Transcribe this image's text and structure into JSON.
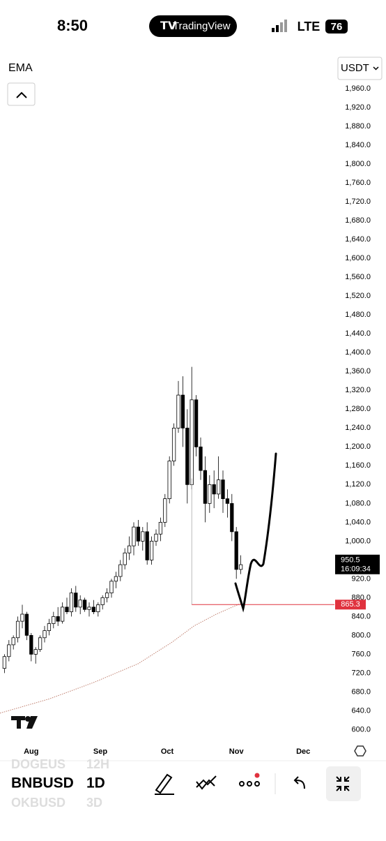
{
  "ui": {
    "time": "8:50",
    "app": "TradingView",
    "network": "LTE",
    "battery": "76",
    "indicator": "EMA",
    "currency": "USDT",
    "symbols": [
      {
        "name": "DOGEUS",
        "interval": "12H"
      },
      {
        "name": "BNBUSD",
        "interval": "1D"
      },
      {
        "name": "OKBUSD",
        "interval": "3D"
      }
    ]
  },
  "chart_data": {
    "type": "candlestick",
    "x": [
      0,
      2,
      4,
      6,
      8,
      10,
      12,
      14,
      16,
      18,
      20,
      22,
      24,
      26,
      28,
      30,
      32,
      34,
      36,
      38,
      40,
      42,
      44,
      46,
      48,
      50,
      52,
      54,
      56,
      58,
      60,
      62,
      64,
      66,
      68,
      70,
      72,
      74,
      76,
      78,
      80,
      82,
      84,
      86,
      88,
      90,
      92,
      94,
      96,
      98,
      100,
      102,
      104,
      106
    ],
    "open": [
      730,
      755,
      780,
      795,
      830,
      845,
      800,
      760,
      770,
      795,
      810,
      825,
      840,
      830,
      860,
      850,
      890,
      860,
      875,
      855,
      860,
      850,
      865,
      880,
      890,
      915,
      925,
      950,
      975,
      990,
      1030,
      1000,
      1020,
      960,
      1000,
      1015,
      1040,
      1090,
      1170,
      1240,
      1310,
      1240,
      1120,
      1300,
      1200,
      1150,
      1080,
      1120,
      1100,
      1130,
      1090,
      1080,
      1020,
      940
    ],
    "high": [
      760,
      790,
      800,
      840,
      865,
      850,
      805,
      775,
      800,
      820,
      835,
      850,
      860,
      870,
      880,
      900,
      905,
      885,
      880,
      870,
      875,
      870,
      885,
      900,
      920,
      935,
      960,
      985,
      1010,
      1040,
      1045,
      1030,
      1040,
      1010,
      1025,
      1050,
      1100,
      1180,
      1250,
      1340,
      1350,
      1280,
      1370,
      1310,
      1220,
      1180,
      1140,
      1150,
      1180,
      1150,
      1110,
      1100,
      1030,
      970
    ],
    "low": [
      720,
      745,
      770,
      785,
      815,
      790,
      745,
      740,
      765,
      785,
      800,
      815,
      820,
      825,
      845,
      840,
      850,
      845,
      850,
      840,
      845,
      840,
      855,
      870,
      880,
      900,
      915,
      940,
      960,
      970,
      990,
      980,
      950,
      950,
      990,
      1000,
      1030,
      1080,
      1160,
      1230,
      1200,
      1080,
      1110,
      1180,
      1130,
      1040,
      1060,
      1070,
      1090,
      1060,
      1050,
      1000,
      920,
      930
    ],
    "close": [
      755,
      780,
      795,
      830,
      845,
      800,
      760,
      770,
      795,
      810,
      825,
      840,
      830,
      860,
      850,
      890,
      860,
      875,
      855,
      860,
      850,
      865,
      880,
      890,
      915,
      925,
      950,
      975,
      990,
      1030,
      1000,
      1020,
      960,
      1000,
      1015,
      1040,
      1090,
      1170,
      1240,
      1310,
      1240,
      1120,
      1300,
      1200,
      1150,
      1080,
      1120,
      1100,
      1130,
      1090,
      1080,
      1020,
      940,
      950
    ],
    "ema": {
      "x": [
        -2,
        20,
        40,
        60,
        75,
        85,
        95,
        106
      ],
      "values": [
        635,
        665,
        700,
        740,
        785,
        820,
        845,
        868
      ]
    },
    "price_line": 865.3,
    "last_price": 950.5,
    "countdown": "16:09:34",
    "xlim": [
      -2,
      148
    ],
    "xticks": [
      {
        "value": 12,
        "label": "Aug"
      },
      {
        "value": 43,
        "label": "Sep"
      },
      {
        "value": 73,
        "label": "Oct"
      },
      {
        "value": 104,
        "label": "Nov"
      },
      {
        "value": 134,
        "label": "Dec"
      }
    ],
    "ylim": [
      568,
      1990
    ],
    "yticks": [
      {
        "value": 600,
        "label": "600.0"
      },
      {
        "value": 640,
        "label": "640.0"
      },
      {
        "value": 680,
        "label": "680.0"
      },
      {
        "value": 720,
        "label": "720.0"
      },
      {
        "value": 760,
        "label": "760.0"
      },
      {
        "value": 800,
        "label": "800.0"
      },
      {
        "value": 840,
        "label": "840.0"
      },
      {
        "value": 880,
        "label": "880.0"
      },
      {
        "value": 920,
        "label": "920.0"
      },
      {
        "value": 960,
        "label": "960.0"
      },
      {
        "value": 1000,
        "label": "1,000.0"
      },
      {
        "value": 1040,
        "label": "1,040.0"
      },
      {
        "value": 1080,
        "label": "1,080.0"
      },
      {
        "value": 1120,
        "label": "1,120.0"
      },
      {
        "value": 1160,
        "label": "1,160.0"
      },
      {
        "value": 1200,
        "label": "1,200.0"
      },
      {
        "value": 1240,
        "label": "1,240.0"
      },
      {
        "value": 1280,
        "label": "1,280.0"
      },
      {
        "value": 1320,
        "label": "1,320.0"
      },
      {
        "value": 1360,
        "label": "1,360.0"
      },
      {
        "value": 1400,
        "label": "1,400.0"
      },
      {
        "value": 1440,
        "label": "1,440.0"
      },
      {
        "value": 1480,
        "label": "1,480.0"
      },
      {
        "value": 1520,
        "label": "1,520.0"
      },
      {
        "value": 1560,
        "label": "1,560.0"
      },
      {
        "value": 1600,
        "label": "1,600.0"
      },
      {
        "value": 1640,
        "label": "1,640.0"
      },
      {
        "value": 1680,
        "label": "1,680.0"
      },
      {
        "value": 1720,
        "label": "1,720.0"
      },
      {
        "value": 1760,
        "label": "1,760.0"
      },
      {
        "value": 1800,
        "label": "1,800.0"
      },
      {
        "value": 1840,
        "label": "1,840.0"
      },
      {
        "value": 1880,
        "label": "1,880.0"
      },
      {
        "value": 1920,
        "label": "1,920.0"
      },
      {
        "value": 1960,
        "label": "1,960.0"
      }
    ],
    "colors": {
      "candle": "#000000",
      "price_line": "#e0323e",
      "ema": "#c08070"
    }
  }
}
